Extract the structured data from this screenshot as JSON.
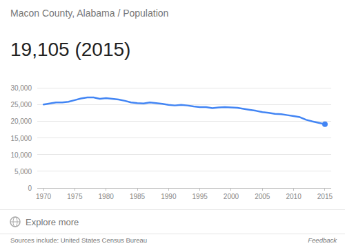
{
  "chart_data": {
    "type": "line",
    "title": "19,105 (2015)",
    "subtitle": "Macon County, Alabama / Population",
    "x": [
      1970,
      1971,
      1972,
      1973,
      1974,
      1975,
      1976,
      1977,
      1978,
      1979,
      1980,
      1981,
      1982,
      1983,
      1984,
      1985,
      1986,
      1987,
      1988,
      1989,
      1990,
      1991,
      1992,
      1993,
      1994,
      1995,
      1996,
      1997,
      1998,
      1999,
      2000,
      2001,
      2002,
      2003,
      2004,
      2005,
      2006,
      2007,
      2008,
      2009,
      2010,
      2011,
      2012,
      2013,
      2014,
      2015
    ],
    "values": [
      25000,
      25300,
      25600,
      25600,
      25800,
      26300,
      26800,
      27100,
      27100,
      26700,
      26900,
      26700,
      26500,
      26100,
      25600,
      25400,
      25300,
      25600,
      25400,
      25200,
      24900,
      24700,
      24900,
      24700,
      24400,
      24200,
      24200,
      23900,
      24100,
      24200,
      24100,
      24000,
      23700,
      23400,
      23100,
      22700,
      22500,
      22200,
      22100,
      21800,
      21500,
      21200,
      20400,
      19900,
      19500,
      19105
    ],
    "color": "#4285f4",
    "xlim": [
      1969,
      2016
    ],
    "xticks": [
      1970,
      1975,
      1980,
      1985,
      1990,
      1995,
      2000,
      2005,
      2010,
      2015
    ],
    "ylim": [
      0,
      30000
    ],
    "yticks": [
      0,
      {
        "value": 5000,
        "label": "5,000"
      },
      {
        "value": 10000,
        "label": "10,000"
      },
      {
        "value": 15000,
        "label": "15,000"
      },
      {
        "value": 20000,
        "label": "20,000"
      },
      {
        "value": 25000,
        "label": "25,000"
      },
      {
        "value": 30000,
        "label": "30,000"
      }
    ],
    "grid": true
  },
  "footer": {
    "explore": "Explore more",
    "source": "Sources include: United States Census Bureau",
    "feedback": "Feedback"
  }
}
